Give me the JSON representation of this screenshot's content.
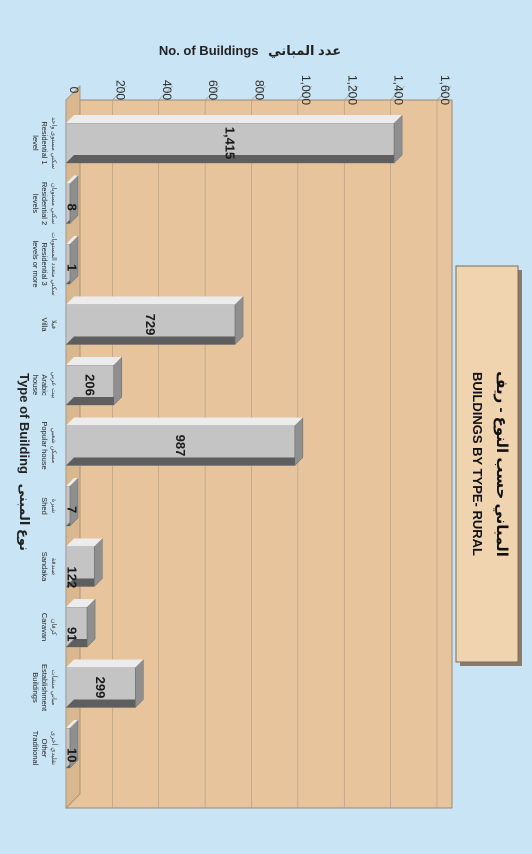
{
  "chart_data": {
    "type": "bar",
    "orientation": "rotated-horizontal",
    "title_en": "BUILDINGS BY TYPE- RURAL",
    "title_ar": "المباني حسب النوع - ريف",
    "value_axis_label_en": "No. of Buildings",
    "value_axis_label_ar": "عدد المباني",
    "category_axis_label_en": "Type of Building",
    "category_axis_label_ar": "نوع المبنى",
    "ylim": [
      0,
      1600
    ],
    "ticks": [
      "0",
      "200",
      "400",
      "600",
      "800",
      "1,000",
      "1,200",
      "1,400",
      "1,600"
    ],
    "grid": true,
    "categories": [
      {
        "en": [
          "Residential 1",
          "level"
        ],
        "ar": "سكني مستوى واحد"
      },
      {
        "en": [
          "Residential 2",
          "levels"
        ],
        "ar": "سكني مستويان"
      },
      {
        "en": [
          "Residential 3",
          "levels or more"
        ],
        "ar": "سكني متعدد المستويات"
      },
      {
        "en": [
          "Villa"
        ],
        "ar": "فيلا"
      },
      {
        "en": [
          "Arabic",
          "house"
        ],
        "ar": "بيت عربي"
      },
      {
        "en": [
          "Popular house"
        ],
        "ar": "مسكن شعبي"
      },
      {
        "en": [
          "Shed"
        ],
        "ar": "شبرة"
      },
      {
        "en": [
          "Sandaka"
        ],
        "ar": "صندقة"
      },
      {
        "en": [
          "Caravan"
        ],
        "ar": "كرفان"
      },
      {
        "en": [
          "Establishment",
          "Buildings"
        ],
        "ar": "مباني منشآت"
      },
      {
        "en": [
          "Other",
          "Traditional"
        ],
        "ar": "تقليدي أخرى"
      }
    ],
    "values": [
      1415,
      8,
      1,
      729,
      206,
      987,
      7,
      122,
      91,
      299,
      10
    ],
    "value_labels": [
      "1,415",
      "8",
      "1",
      "729",
      "206",
      "987",
      "7",
      "122",
      "91",
      "299",
      "10"
    ],
    "colors": {
      "background": "#c9e4f4",
      "plot_wall": "#e8c49c",
      "title_box": "#f0d4b0",
      "bar_face": "#c4c4c4",
      "bar_top": "#ececec",
      "bar_side": "#5e5e5e"
    }
  }
}
